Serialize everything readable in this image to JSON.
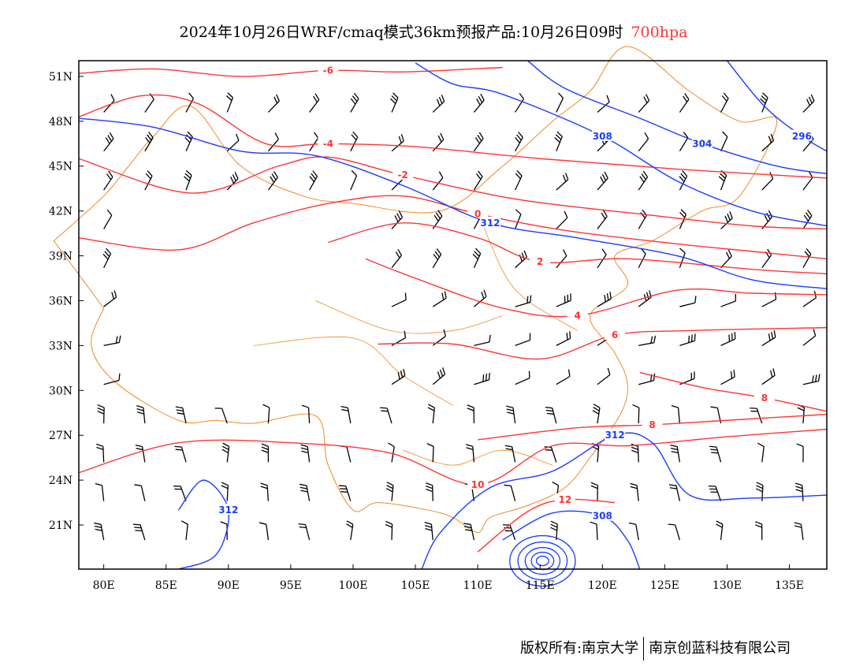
{
  "title": {
    "main": "2024年10月26日WRF/cmaq模式36km预报产品:10月26日09时",
    "level": "700hpa",
    "level_color": "#ff3333"
  },
  "footer": {
    "left": "版权所有:南京大学",
    "right": "南京创蓝科技有限公司"
  },
  "axes": {
    "lon_ticks": [
      "80E",
      "85E",
      "90E",
      "95E",
      "100E",
      "105E",
      "110E",
      "115E",
      "120E",
      "125E",
      "130E",
      "135E"
    ],
    "lon_values": [
      80,
      85,
      90,
      95,
      100,
      105,
      110,
      115,
      120,
      125,
      130,
      135
    ],
    "lat_ticks": [
      "51N",
      "48N",
      "45N",
      "42N",
      "39N",
      "36N",
      "33N",
      "30N",
      "27N",
      "24N",
      "21N"
    ],
    "lat_values": [
      51,
      48,
      45,
      42,
      39,
      36,
      33,
      30,
      27,
      24,
      21
    ],
    "lon_range": [
      78,
      138
    ],
    "lat_range": [
      18.05,
      52.05
    ]
  },
  "colors": {
    "temperature": "#ff3333",
    "height": "#1a3cff",
    "border": "#f08a24",
    "wind": "#000000"
  },
  "temperature_contours": [
    {
      "label": "-6",
      "pts": [
        [
          78,
          51.2
        ],
        [
          84,
          51.5
        ],
        [
          91,
          51
        ],
        [
          98,
          51.4
        ],
        [
          104,
          51.3
        ],
        [
          112,
          51.6
        ]
      ]
    },
    {
      "label": "-4",
      "pts": [
        [
          78,
          48.3
        ],
        [
          83,
          49.7
        ],
        [
          87.5,
          49.2
        ],
        [
          93,
          46.5
        ],
        [
          98,
          46.5
        ],
        [
          105,
          46.3
        ],
        [
          115,
          45.5
        ],
        [
          126,
          44.8
        ],
        [
          138,
          44.2
        ]
      ]
    },
    {
      "label": "-2",
      "pts": [
        [
          78,
          45.5
        ],
        [
          87,
          43.2
        ],
        [
          94,
          45
        ],
        [
          98,
          45.6
        ],
        [
          104,
          44.4
        ],
        [
          113,
          42.8
        ],
        [
          123,
          41.8
        ],
        [
          132,
          41
        ],
        [
          138,
          40.8
        ]
      ]
    },
    {
      "label": "0",
      "pts": [
        [
          78,
          40.2
        ],
        [
          86,
          39.4
        ],
        [
          92,
          41.2
        ],
        [
          98,
          42.5
        ],
        [
          104,
          43
        ],
        [
          110,
          41.8
        ],
        [
          117,
          40.7
        ],
        [
          126,
          39.8
        ],
        [
          132,
          39.3
        ],
        [
          138,
          38.8
        ]
      ]
    },
    {
      "label": "2",
      "pts": [
        [
          98,
          39.9
        ],
        [
          104,
          41.2
        ],
        [
          110,
          40.2
        ],
        [
          115,
          38.6
        ],
        [
          122,
          38.8
        ],
        [
          132,
          38.1
        ],
        [
          138,
          37.8
        ]
      ]
    },
    {
      "label": "4",
      "pts": [
        [
          101,
          38.8
        ],
        [
          105,
          37.5
        ],
        [
          112,
          35.5
        ],
        [
          118,
          35
        ],
        [
          126,
          36.7
        ],
        [
          132,
          36.5
        ],
        [
          138,
          36.4
        ]
      ]
    },
    {
      "label": "6",
      "pts": [
        [
          102,
          33.1
        ],
        [
          108,
          33.1
        ],
        [
          115,
          32.1
        ],
        [
          121,
          33.7
        ],
        [
          127,
          34
        ],
        [
          138,
          34.2
        ]
      ]
    },
    {
      "label": "8",
      "pts": [
        [
          123,
          31.2
        ],
        [
          128,
          30.2
        ],
        [
          133,
          29.5
        ],
        [
          138,
          28.6
        ]
      ]
    },
    {
      "label": "8",
      "pts": [
        [
          110,
          26.7
        ],
        [
          118,
          27.5
        ],
        [
          124,
          27.7
        ],
        [
          130,
          28
        ],
        [
          138,
          28.4
        ]
      ]
    },
    {
      "label": "10",
      "pts": [
        [
          78,
          24.5
        ],
        [
          86,
          26.5
        ],
        [
          95,
          26.5
        ],
        [
          103,
          25.8
        ],
        [
          110,
          23.7
        ],
        [
          116,
          26.3
        ],
        [
          122,
          26.3
        ],
        [
          130,
          26.9
        ],
        [
          138,
          27.4
        ]
      ]
    },
    {
      "label": "12",
      "pts": [
        [
          110,
          19.2
        ],
        [
          114,
          21.9
        ],
        [
          117,
          22.7
        ],
        [
          121,
          22.5
        ]
      ]
    }
  ],
  "height_contours": [
    {
      "label": "312",
      "pts": [
        [
          78,
          48.2
        ],
        [
          84,
          47.6
        ],
        [
          91,
          46
        ],
        [
          97,
          45.7
        ],
        [
          104,
          43.7
        ],
        [
          111,
          41.2
        ],
        [
          118,
          40.2
        ],
        [
          126,
          39
        ],
        [
          132,
          37.4
        ],
        [
          138,
          36.8
        ]
      ]
    },
    {
      "label": "308",
      "pts": [
        [
          105,
          51.9
        ],
        [
          108,
          50.5
        ],
        [
          112,
          49.8
        ],
        [
          120,
          47
        ],
        [
          126,
          44
        ],
        [
          132,
          42
        ],
        [
          138,
          41
        ]
      ]
    },
    {
      "label": "304",
      "pts": [
        [
          114,
          52.05
        ],
        [
          117,
          50.2
        ],
        [
          123,
          48.2
        ],
        [
          128,
          46.5
        ],
        [
          134,
          45
        ],
        [
          138,
          44.5
        ]
      ]
    },
    {
      "label": "296",
      "pts": [
        [
          130,
          52.05
        ],
        [
          133,
          49
        ],
        [
          136,
          47
        ],
        [
          138,
          46
        ]
      ]
    },
    {
      "label": "312",
      "pts": [
        [
          105.5,
          18.05
        ],
        [
          107,
          20.5
        ],
        [
          111,
          23.5
        ],
        [
          116,
          24.6
        ],
        [
          121,
          27
        ],
        [
          124,
          26.5
        ],
        [
          127,
          23
        ],
        [
          132,
          22.8
        ],
        [
          138,
          23
        ]
      ]
    },
    {
      "label": "308",
      "pts": [
        [
          112,
          20
        ],
        [
          116,
          21.8
        ],
        [
          120,
          21.6
        ],
        [
          122,
          20
        ],
        [
          123,
          18.05
        ]
      ]
    },
    {
      "label": "312",
      "pts": [
        [
          86,
          22
        ],
        [
          88,
          24
        ],
        [
          90,
          22
        ],
        [
          89,
          19
        ],
        [
          86,
          18.05
        ]
      ]
    }
  ]
}
